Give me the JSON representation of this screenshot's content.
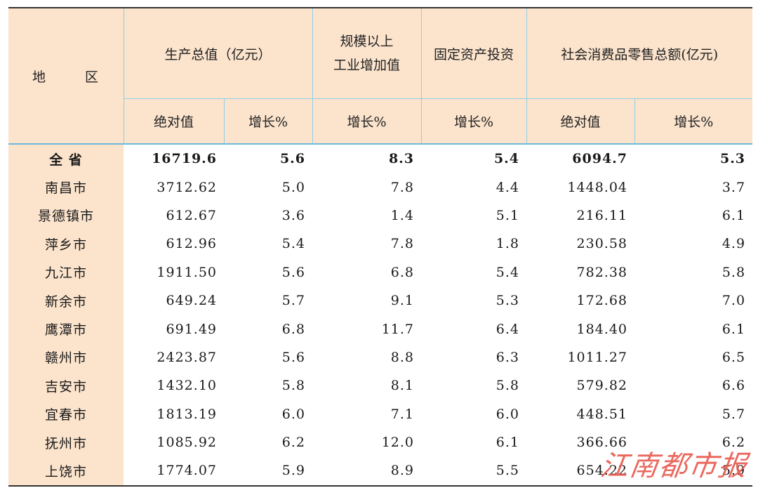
{
  "header": {
    "region": [
      "地",
      "区"
    ],
    "gdp": "生产总值（亿元）",
    "industry_l1": "规模以上",
    "industry_l2": "工业增加值",
    "investment": "固定资产投资",
    "retail": "社会消费品零售总额(亿元)",
    "absolute": "绝对值",
    "growth": "增长%"
  },
  "rows": [
    {
      "name": "全 省",
      "gdp": "16719.6",
      "gdp_g": "5.6",
      "ind_g": "8.3",
      "inv_g": "5.4",
      "ret": "6094.7",
      "ret_g": "5.3"
    },
    {
      "name": "南昌市",
      "gdp": "3712.62",
      "gdp_g": "5.0",
      "ind_g": "7.8",
      "inv_g": "4.4",
      "ret": "1448.04",
      "ret_g": "3.7"
    },
    {
      "name": "景德镇市",
      "gdp": "612.67",
      "gdp_g": "3.6",
      "ind_g": "1.4",
      "inv_g": "5.1",
      "ret": "216.11",
      "ret_g": "6.1"
    },
    {
      "name": "萍乡市",
      "gdp": "612.96",
      "gdp_g": "5.4",
      "ind_g": "7.8",
      "inv_g": "1.8",
      "ret": "230.58",
      "ret_g": "4.9"
    },
    {
      "name": "九江市",
      "gdp": "1911.50",
      "gdp_g": "5.6",
      "ind_g": "6.8",
      "inv_g": "5.4",
      "ret": "782.38",
      "ret_g": "5.8"
    },
    {
      "name": "新余市",
      "gdp": "649.24",
      "gdp_g": "5.7",
      "ind_g": "9.1",
      "inv_g": "5.3",
      "ret": "172.68",
      "ret_g": "7.0"
    },
    {
      "name": "鹰潭市",
      "gdp": "691.49",
      "gdp_g": "6.8",
      "ind_g": "11.7",
      "inv_g": "6.4",
      "ret": "184.40",
      "ret_g": "6.1"
    },
    {
      "name": "赣州市",
      "gdp": "2423.87",
      "gdp_g": "5.6",
      "ind_g": "8.8",
      "inv_g": "6.3",
      "ret": "1011.27",
      "ret_g": "6.5"
    },
    {
      "name": "吉安市",
      "gdp": "1432.10",
      "gdp_g": "5.8",
      "ind_g": "8.1",
      "inv_g": "5.8",
      "ret": "579.82",
      "ret_g": "6.6"
    },
    {
      "name": "宜春市",
      "gdp": "1813.19",
      "gdp_g": "6.0",
      "ind_g": "7.1",
      "inv_g": "6.0",
      "ret": "448.51",
      "ret_g": "5.7"
    },
    {
      "name": "抚州市",
      "gdp": "1085.92",
      "gdp_g": "6.2",
      "ind_g": "12.0",
      "inv_g": "6.1",
      "ret": "366.66",
      "ret_g": "6.2"
    },
    {
      "name": "上饶市",
      "gdp": "1774.07",
      "gdp_g": "5.9",
      "ind_g": "8.9",
      "inv_g": "5.5",
      "ret": "654.22",
      "ret_g": "5.9"
    }
  ],
  "watermark": "江南都市报",
  "colors": {
    "header_bg": "#fbe3cc",
    "grid_line": "#8fd0e8",
    "watermark": "#e8584d"
  }
}
